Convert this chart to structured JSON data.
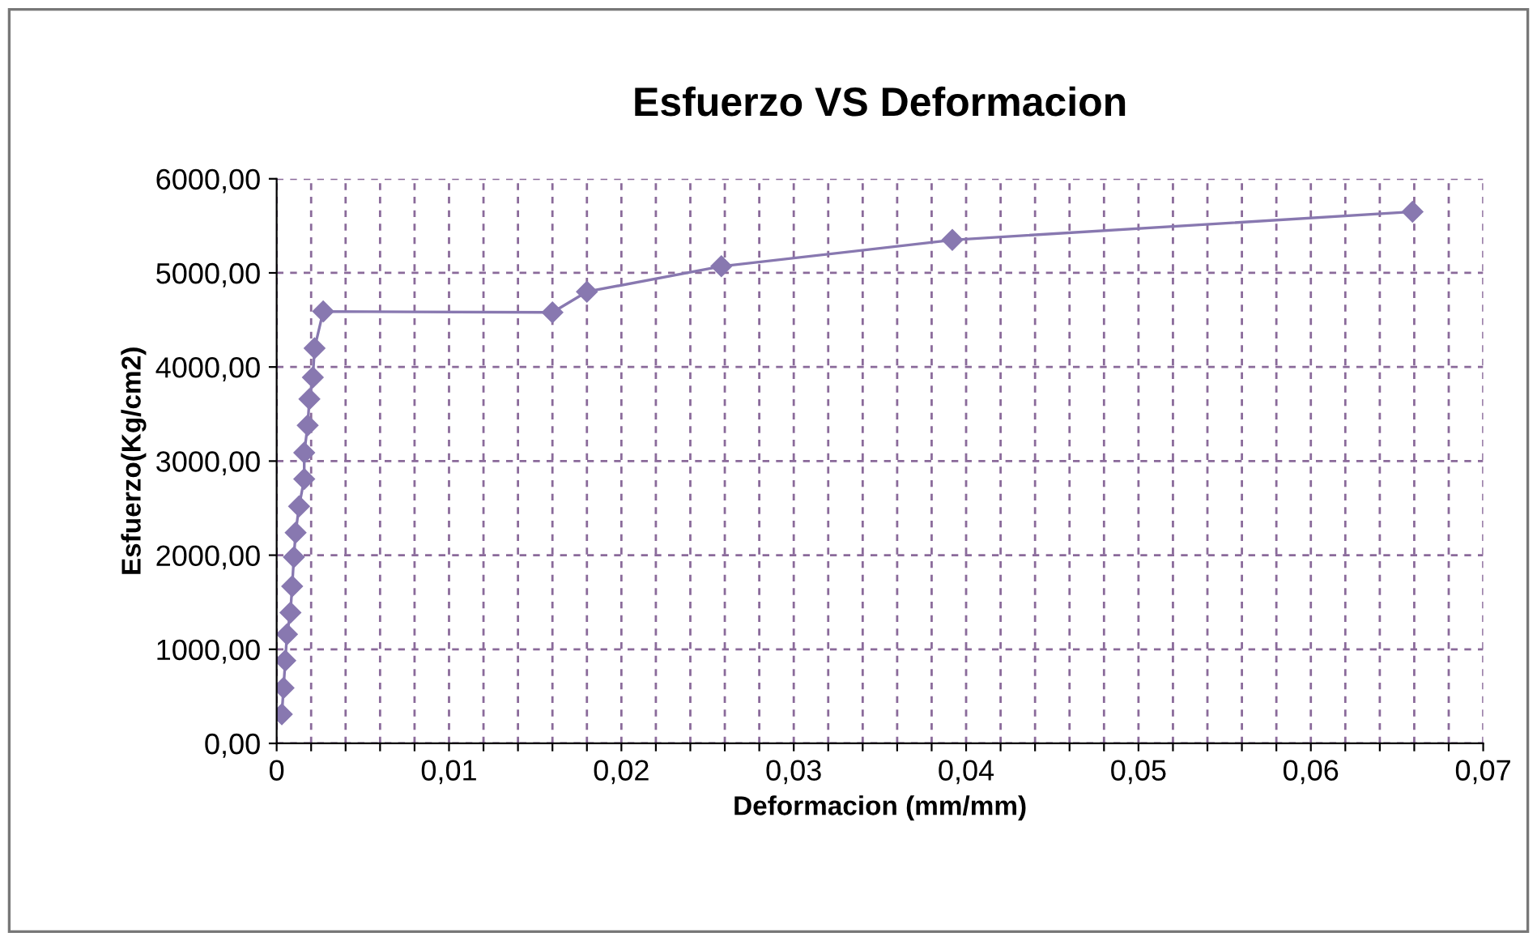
{
  "chart_data": {
    "type": "line",
    "title": "Esfuerzo VS Deformacion",
    "xlabel": "Deformacion (mm/mm)",
    "ylabel": "Esfuerzo(Kg/cm2)",
    "series": [
      {
        "color": "#8878b0",
        "x": [
          0.0003,
          0.0004,
          0.0005,
          0.0006,
          0.0008,
          0.0009,
          0.001,
          0.0011,
          0.0013,
          0.0016,
          0.0016,
          0.0018,
          0.0019,
          0.0021,
          0.0022,
          0.0027,
          0.016,
          0.018,
          0.0258,
          0.0392,
          0.0659
        ],
        "values": [
          310,
          590,
          880,
          1160,
          1390,
          1670,
          1980,
          2240,
          2520,
          2810,
          3090,
          3380,
          3660,
          3890,
          4200,
          4590,
          4580,
          4800,
          5070,
          5350,
          5650
        ]
      }
    ],
    "marker": "diamond",
    "line_style": "solid",
    "grid": true,
    "legend": false,
    "xlim": [
      0,
      0.07
    ],
    "ylim": [
      0,
      6000
    ],
    "xticks": [
      0,
      {
        "value": 0.002,
        "label": null
      },
      {
        "value": 0.004,
        "label": null
      },
      {
        "value": 0.006,
        "label": null
      },
      {
        "value": 0.008,
        "label": null
      },
      {
        "value": 0.01,
        "label": "0,01"
      },
      {
        "value": 0.012,
        "label": null
      },
      {
        "value": 0.014,
        "label": null
      },
      {
        "value": 0.016,
        "label": null
      },
      {
        "value": 0.018,
        "label": null
      },
      {
        "value": 0.02,
        "label": "0,02"
      },
      {
        "value": 0.022,
        "label": null
      },
      {
        "value": 0.024,
        "label": null
      },
      {
        "value": 0.026,
        "label": null
      },
      {
        "value": 0.028,
        "label": null
      },
      {
        "value": 0.03,
        "label": "0,03"
      },
      {
        "value": 0.032,
        "label": null
      },
      {
        "value": 0.034,
        "label": null
      },
      {
        "value": 0.036,
        "label": null
      },
      {
        "value": 0.038,
        "label": null
      },
      {
        "value": 0.04,
        "label": "0,04"
      },
      {
        "value": 0.042,
        "label": null
      },
      {
        "value": 0.044,
        "label": null
      },
      {
        "value": 0.046,
        "label": null
      },
      {
        "value": 0.048,
        "label": null
      },
      {
        "value": 0.05,
        "label": "0,05"
      },
      {
        "value": 0.052,
        "label": null
      },
      {
        "value": 0.054,
        "label": null
      },
      {
        "value": 0.056,
        "label": null
      },
      {
        "value": 0.058,
        "label": null
      },
      {
        "value": 0.06,
        "label": "0,06"
      },
      {
        "value": 0.062,
        "label": null
      },
      {
        "value": 0.064,
        "label": null
      },
      {
        "value": 0.066,
        "label": null
      },
      {
        "value": 0.068,
        "label": null
      },
      {
        "value": 0.07,
        "label": "0,07"
      }
    ],
    "yticks": [
      {
        "value": 0,
        "label": "0,00"
      },
      {
        "value": 1000,
        "label": "1000,00"
      },
      {
        "value": 2000,
        "label": "2000,00"
      },
      {
        "value": 3000,
        "label": "3000,00"
      },
      {
        "value": 4000,
        "label": "4000,00"
      },
      {
        "value": 5000,
        "label": "5000,00"
      },
      {
        "value": 6000,
        "label": "6000,00"
      }
    ]
  }
}
